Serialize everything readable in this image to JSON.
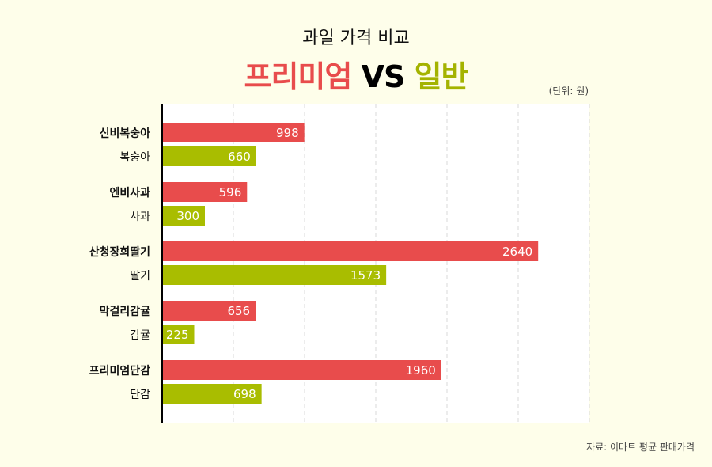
{
  "header": {
    "subtitle": "과일 가격 비교",
    "title_premium": "프리미엄",
    "title_vs": "VS",
    "title_general": "일반",
    "unit": "(단위: 원)"
  },
  "footer": {
    "source": "자료: 이마트 평균 판매가격"
  },
  "colors": {
    "premium": "#e84c4c",
    "general": "#a9bd00"
  },
  "chart_data": {
    "type": "bar",
    "orientation": "horizontal",
    "xlim": [
      0,
      3000
    ],
    "grid": true,
    "ticks": [
      500,
      1000,
      1500,
      2000,
      2500,
      3000
    ],
    "groups": [
      {
        "premium": {
          "label": "신비복숭아",
          "value": 998
        },
        "general": {
          "label": "복숭아",
          "value": 660
        }
      },
      {
        "premium": {
          "label": "엔비사과",
          "value": 596
        },
        "general": {
          "label": "사과",
          "value": 300
        }
      },
      {
        "premium": {
          "label": "산청장희딸기",
          "value": 2640
        },
        "general": {
          "label": "딸기",
          "value": 1573
        }
      },
      {
        "premium": {
          "label": "막걸리감귤",
          "value": 656
        },
        "general": {
          "label": "감귤",
          "value": 225
        }
      },
      {
        "premium": {
          "label": "프리미엄단감",
          "value": 1960
        },
        "general": {
          "label": "단감",
          "value": 698
        }
      }
    ]
  }
}
